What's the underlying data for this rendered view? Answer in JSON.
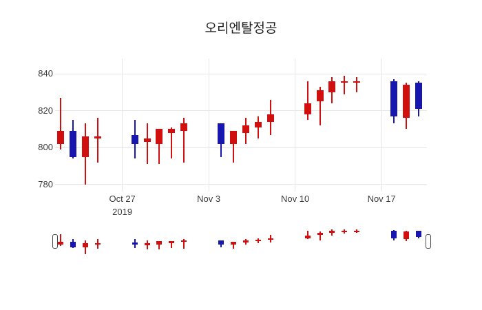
{
  "title": "오리엔탈정공",
  "colors": {
    "background": "#ffffff",
    "grid": "#e7e7e7",
    "tick_text": "#3b3b3b",
    "title_text": "#222222",
    "increasing": "#d20f0f",
    "decreasing": "#1717b0",
    "handle_border": "#4a4a4a",
    "handle_fill": "#ffffff"
  },
  "chart_data": {
    "type": "candlestick",
    "title": "오리엔탈정공",
    "xlabel": "",
    "ylabel": "",
    "grid": true,
    "legend": false,
    "y_ticks": [
      780,
      800,
      820,
      840
    ],
    "ylim": [
      776,
      848
    ],
    "x_ticks": [
      {
        "date": "2019-10-27",
        "label": "Oct 27",
        "sublabel": "2019"
      },
      {
        "date": "2019-11-03",
        "label": "Nov 3",
        "sublabel": ""
      },
      {
        "date": "2019-11-10",
        "label": "Nov 10",
        "sublabel": ""
      },
      {
        "date": "2019-11-17",
        "label": "Nov 17",
        "sublabel": ""
      }
    ],
    "increasing_color": "#d20f0f",
    "decreasing_color": "#1717b0",
    "rangeslider": {
      "visible": true,
      "left_handle": true,
      "right_handle": true
    },
    "candles": [
      {
        "date": "2019-10-22",
        "open": 802,
        "high": 827,
        "low": 799,
        "close": 809
      },
      {
        "date": "2019-10-23",
        "open": 809,
        "high": 815,
        "low": 794,
        "close": 795
      },
      {
        "date": "2019-10-24",
        "open": 795,
        "high": 813,
        "low": 780,
        "close": 806
      },
      {
        "date": "2019-10-25",
        "open": 805,
        "high": 816,
        "low": 792,
        "close": 806
      },
      {
        "date": "2019-10-28",
        "open": 807,
        "high": 815,
        "low": 794,
        "close": 802
      },
      {
        "date": "2019-10-29",
        "open": 803,
        "high": 813,
        "low": 791,
        "close": 805
      },
      {
        "date": "2019-10-30",
        "open": 802,
        "high": 810,
        "low": 791,
        "close": 810
      },
      {
        "date": "2019-10-31",
        "open": 808,
        "high": 811,
        "low": 794,
        "close": 810
      },
      {
        "date": "2019-11-01",
        "open": 809,
        "high": 816,
        "low": 792,
        "close": 813
      },
      {
        "date": "2019-11-04",
        "open": 813,
        "high": 813,
        "low": 795,
        "close": 802
      },
      {
        "date": "2019-11-05",
        "open": 802,
        "high": 809,
        "low": 792,
        "close": 809
      },
      {
        "date": "2019-11-06",
        "open": 808,
        "high": 816,
        "low": 802,
        "close": 812
      },
      {
        "date": "2019-11-07",
        "open": 811,
        "high": 817,
        "low": 805,
        "close": 814
      },
      {
        "date": "2019-11-08",
        "open": 814,
        "high": 826,
        "low": 807,
        "close": 818
      },
      {
        "date": "2019-11-11",
        "open": 818,
        "high": 836,
        "low": 815,
        "close": 824
      },
      {
        "date": "2019-11-12",
        "open": 825,
        "high": 833,
        "low": 812,
        "close": 831
      },
      {
        "date": "2019-11-13",
        "open": 830,
        "high": 838,
        "low": 824,
        "close": 836
      },
      {
        "date": "2019-11-14",
        "open": 835,
        "high": 839,
        "low": 829,
        "close": 836
      },
      {
        "date": "2019-11-15",
        "open": 835,
        "high": 838,
        "low": 830,
        "close": 836
      },
      {
        "date": "2019-11-18",
        "open": 836,
        "high": 837,
        "low": 813,
        "close": 817
      },
      {
        "date": "2019-11-19",
        "open": 816,
        "high": 835,
        "low": 810,
        "close": 834
      },
      {
        "date": "2019-11-20",
        "open": 835,
        "high": 836,
        "low": 817,
        "close": 821
      }
    ]
  }
}
